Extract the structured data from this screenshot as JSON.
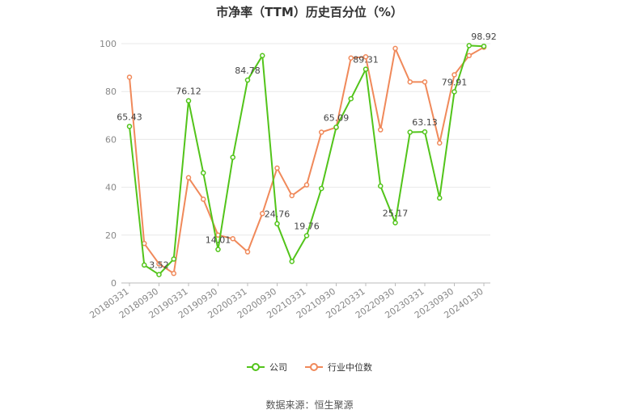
{
  "chart_data": {
    "type": "line",
    "title": "市净率（TTM）历史百分位（%）",
    "xlabel": "",
    "ylabel": "",
    "ylim": [
      0,
      100
    ],
    "yticks": [
      0,
      20,
      40,
      60,
      80,
      100
    ],
    "x": [
      "20180331",
      "20180630",
      "20180930",
      "20181231",
      "20190331",
      "20190630",
      "20190930",
      "20191231",
      "20200331",
      "20200630",
      "20200930",
      "20201231",
      "20210331",
      "20210630",
      "20210930",
      "20211231",
      "20220331",
      "20220630",
      "20220930",
      "20221231",
      "20230331",
      "20230630",
      "20230930",
      "20231231",
      "20240130"
    ],
    "x_tick_labels": [
      "20180331",
      "20180930",
      "20190331",
      "20190930",
      "20200331",
      "20200930",
      "20210331",
      "20210930",
      "20220331",
      "20220930",
      "20230331",
      "20230930",
      "20240130"
    ],
    "grid": true,
    "legend_position": "bottom",
    "series": [
      {
        "name": "公司",
        "color": "#52c41a",
        "values": [
          65.43,
          7.5,
          3.52,
          10.0,
          76.12,
          46.0,
          14.01,
          52.5,
          84.78,
          95.0,
          24.76,
          9.0,
          19.76,
          39.5,
          65.09,
          77.0,
          89.31,
          40.5,
          25.17,
          63.0,
          63.13,
          35.5,
          79.91,
          99.2,
          98.92
        ],
        "labeled_points": [
          {
            "index": 0,
            "label": "65.43"
          },
          {
            "index": 2,
            "label": "3.52"
          },
          {
            "index": 4,
            "label": "76.12"
          },
          {
            "index": 6,
            "label": "14.01"
          },
          {
            "index": 8,
            "label": "84.78"
          },
          {
            "index": 10,
            "label": "24.76"
          },
          {
            "index": 12,
            "label": "19.76"
          },
          {
            "index": 14,
            "label": "65.09"
          },
          {
            "index": 16,
            "label": "89.31"
          },
          {
            "index": 18,
            "label": "25.17"
          },
          {
            "index": 20,
            "label": "63.13"
          },
          {
            "index": 22,
            "label": "79.91"
          },
          {
            "index": 24,
            "label": "98.92"
          }
        ]
      },
      {
        "name": "行业中位数",
        "color": "#f0895a",
        "values": [
          86.0,
          16.5,
          8.0,
          4.0,
          44.0,
          35.0,
          20.0,
          18.5,
          13.0,
          29.0,
          48.0,
          36.5,
          41.0,
          63.0,
          65.0,
          94.0,
          94.5,
          64.0,
          98.0,
          84.0,
          84.0,
          58.5,
          87.0,
          95.0,
          98.5
        ]
      }
    ]
  },
  "source_text": "数据来源：恒生聚源"
}
